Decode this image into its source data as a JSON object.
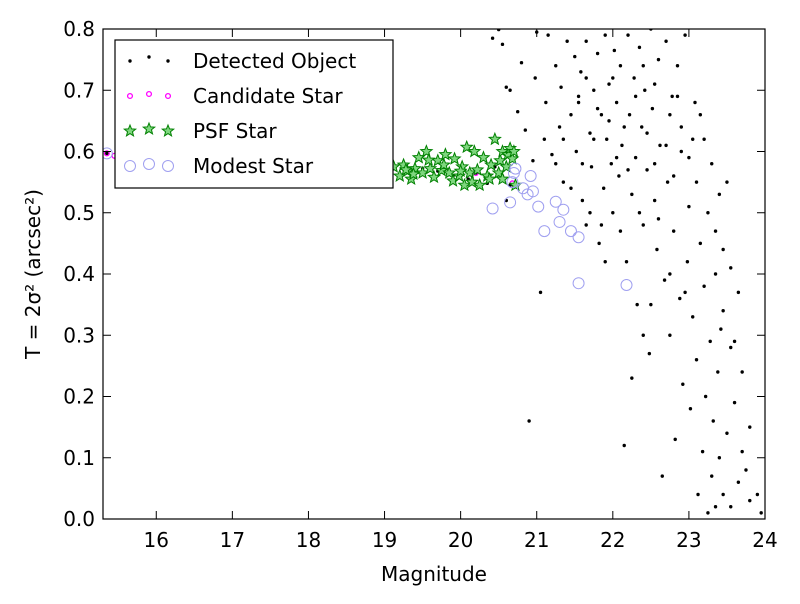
{
  "chart_data": {
    "type": "scatter",
    "xlabel": "Magnitude",
    "ylabel": "T = 2σ² (arcsec²)",
    "xlim": [
      15.3,
      24.0
    ],
    "ylim": [
      0.0,
      0.8
    ],
    "xticks": [
      "16",
      "17",
      "18",
      "19",
      "20",
      "21",
      "22",
      "23",
      "24"
    ],
    "yticks": [
      "0.0",
      "0.1",
      "0.2",
      "0.3",
      "0.4",
      "0.5",
      "0.6",
      "0.7",
      "0.8"
    ],
    "legend_position": "top-left",
    "grid": false,
    "series": [
      {
        "name": "Detected Object",
        "marker": "dot",
        "color": "#000000",
        "points": [
          [
            15.35,
            0.597
          ],
          [
            15.5,
            0.595
          ],
          [
            15.8,
            0.596
          ],
          [
            16.2,
            0.594
          ],
          [
            16.7,
            0.59
          ],
          [
            17.3,
            0.586
          ],
          [
            17.8,
            0.583
          ],
          [
            18.4,
            0.578
          ],
          [
            18.9,
            0.574
          ],
          [
            19.1,
            0.57
          ],
          [
            19.3,
            0.566
          ],
          [
            19.5,
            0.572
          ],
          [
            19.7,
            0.568
          ],
          [
            19.9,
            0.56
          ],
          [
            20.1,
            0.555
          ],
          [
            20.2,
            0.565
          ],
          [
            20.35,
            0.548
          ],
          [
            20.45,
            0.575
          ],
          [
            20.55,
            0.56
          ],
          [
            20.65,
            0.545
          ],
          [
            20.6,
            0.52
          ],
          [
            20.75,
            0.545
          ],
          [
            20.42,
            0.785
          ],
          [
            20.5,
            0.799
          ],
          [
            20.55,
            0.775
          ],
          [
            20.6,
            0.705
          ],
          [
            20.65,
            0.7
          ],
          [
            20.75,
            0.665
          ],
          [
            20.8,
            0.745
          ],
          [
            20.85,
            0.635
          ],
          [
            20.9,
            0.16
          ],
          [
            20.95,
            0.585
          ],
          [
            20.98,
            0.72
          ],
          [
            21.0,
            0.795
          ],
          [
            21.05,
            0.37
          ],
          [
            21.1,
            0.62
          ],
          [
            21.12,
            0.68
          ],
          [
            21.15,
            0.79
          ],
          [
            21.2,
            0.595
          ],
          [
            21.25,
            0.74
          ],
          [
            21.3,
            0.64
          ],
          [
            21.32,
            0.705
          ],
          [
            21.35,
            0.55
          ],
          [
            21.4,
            0.78
          ],
          [
            21.45,
            0.66
          ],
          [
            21.5,
            0.755
          ],
          [
            21.52,
            0.6
          ],
          [
            21.55,
            0.69
          ],
          [
            21.58,
            0.73
          ],
          [
            21.6,
            0.52
          ],
          [
            21.65,
            0.78
          ],
          [
            21.7,
            0.63
          ],
          [
            21.72,
            0.575
          ],
          [
            21.75,
            0.7
          ],
          [
            21.8,
            0.76
          ],
          [
            21.82,
            0.45
          ],
          [
            21.85,
            0.66
          ],
          [
            21.88,
            0.54
          ],
          [
            21.9,
            0.79
          ],
          [
            21.92,
            0.62
          ],
          [
            21.95,
            0.71
          ],
          [
            21.98,
            0.58
          ],
          [
            22.0,
            0.5
          ],
          [
            22.02,
            0.765
          ],
          [
            22.05,
            0.68
          ],
          [
            22.08,
            0.56
          ],
          [
            22.1,
            0.74
          ],
          [
            22.12,
            0.61
          ],
          [
            22.15,
            0.12
          ],
          [
            22.18,
            0.42
          ],
          [
            22.2,
            0.79
          ],
          [
            22.22,
            0.66
          ],
          [
            22.25,
            0.53
          ],
          [
            22.28,
            0.72
          ],
          [
            22.3,
            0.59
          ],
          [
            22.32,
            0.35
          ],
          [
            22.35,
            0.77
          ],
          [
            22.38,
            0.64
          ],
          [
            22.4,
            0.48
          ],
          [
            22.42,
            0.7
          ],
          [
            22.45,
            0.57
          ],
          [
            22.48,
            0.27
          ],
          [
            22.5,
            0.8
          ],
          [
            22.52,
            0.67
          ],
          [
            22.55,
            0.52
          ],
          [
            22.58,
            0.44
          ],
          [
            22.6,
            0.75
          ],
          [
            22.62,
            0.61
          ],
          [
            22.65,
            0.07
          ],
          [
            22.68,
            0.39
          ],
          [
            22.7,
            0.78
          ],
          [
            22.72,
            0.55
          ],
          [
            22.75,
            0.3
          ],
          [
            22.78,
            0.69
          ],
          [
            22.8,
            0.47
          ],
          [
            22.82,
            0.13
          ],
          [
            22.85,
            0.74
          ],
          [
            22.88,
            0.36
          ],
          [
            22.9,
            0.6
          ],
          [
            22.92,
            0.22
          ],
          [
            22.95,
            0.79
          ],
          [
            22.98,
            0.42
          ],
          [
            23.0,
            0.51
          ],
          [
            23.02,
            0.18
          ],
          [
            23.05,
            0.33
          ],
          [
            23.08,
            0.68
          ],
          [
            23.1,
            0.26
          ],
          [
            23.12,
            0.04
          ],
          [
            23.15,
            0.45
          ],
          [
            23.18,
            0.11
          ],
          [
            23.2,
            0.38
          ],
          [
            23.22,
            0.2
          ],
          [
            23.25,
            0.01
          ],
          [
            23.28,
            0.29
          ],
          [
            23.3,
            0.07
          ],
          [
            23.32,
            0.16
          ],
          [
            23.35,
            0.02
          ],
          [
            23.38,
            0.24
          ],
          [
            23.4,
            0.1
          ],
          [
            23.42,
            0.31
          ],
          [
            23.45,
            0.04
          ],
          [
            23.5,
            0.14
          ],
          [
            23.55,
            0.02
          ],
          [
            23.6,
            0.19
          ],
          [
            23.65,
            0.06
          ],
          [
            23.7,
            0.11
          ],
          [
            23.75,
            0.08
          ],
          [
            23.8,
            0.03
          ],
          [
            23.9,
            0.04
          ],
          [
            23.95,
            0.01
          ],
          [
            21.6,
            0.58
          ],
          [
            21.7,
            0.5
          ],
          [
            21.75,
            0.62
          ],
          [
            21.85,
            0.48
          ],
          [
            21.95,
            0.65
          ],
          [
            22.05,
            0.59
          ],
          [
            22.1,
            0.47
          ],
          [
            22.2,
            0.57
          ],
          [
            22.3,
            0.69
          ],
          [
            22.35,
            0.5
          ],
          [
            22.45,
            0.63
          ],
          [
            22.55,
            0.58
          ],
          [
            22.6,
            0.49
          ],
          [
            22.7,
            0.61
          ],
          [
            22.8,
            0.56
          ],
          [
            22.9,
            0.64
          ],
          [
            23.0,
            0.59
          ],
          [
            23.1,
            0.55
          ],
          [
            23.2,
            0.62
          ],
          [
            23.3,
            0.58
          ],
          [
            23.4,
            0.53
          ],
          [
            23.5,
            0.55
          ],
          [
            23.6,
            0.29
          ],
          [
            23.7,
            0.24
          ],
          [
            23.8,
            0.15
          ],
          [
            23.35,
            0.4
          ],
          [
            23.45,
            0.34
          ],
          [
            23.55,
            0.28
          ],
          [
            22.95,
            0.37
          ],
          [
            22.75,
            0.4
          ],
          [
            22.5,
            0.35
          ],
          [
            22.25,
            0.23
          ],
          [
            22.4,
            0.3
          ],
          [
            21.9,
            0.42
          ],
          [
            21.65,
            0.48
          ],
          [
            21.45,
            0.54
          ],
          [
            21.35,
            0.62
          ],
          [
            21.25,
            0.58
          ],
          [
            21.55,
            0.68
          ],
          [
            21.65,
            0.72
          ],
          [
            21.8,
            0.67
          ],
          [
            22.0,
            0.72
          ],
          [
            22.15,
            0.64
          ],
          [
            22.4,
            0.74
          ],
          [
            22.55,
            0.71
          ],
          [
            22.75,
            0.66
          ],
          [
            22.85,
            0.69
          ],
          [
            23.05,
            0.62
          ],
          [
            23.15,
            0.66
          ],
          [
            23.25,
            0.5
          ],
          [
            23.35,
            0.47
          ],
          [
            23.45,
            0.44
          ],
          [
            23.55,
            0.41
          ],
          [
            23.65,
            0.37
          ]
        ]
      },
      {
        "name": "Candidate Star",
        "marker": "circle-small",
        "color": "#ff00ff",
        "points": [
          [
            15.35,
            0.597
          ],
          [
            15.45,
            0.593
          ],
          [
            20.2,
            0.565
          ],
          [
            20.68,
            0.548
          ]
        ]
      },
      {
        "name": "PSF Star",
        "marker": "star",
        "color": "#008000",
        "points": [
          [
            19.12,
            0.575
          ],
          [
            19.2,
            0.56
          ],
          [
            19.25,
            0.578
          ],
          [
            19.3,
            0.568
          ],
          [
            19.35,
            0.555
          ],
          [
            19.4,
            0.572
          ],
          [
            19.45,
            0.59
          ],
          [
            19.5,
            0.565
          ],
          [
            19.55,
            0.6
          ],
          [
            19.6,
            0.572
          ],
          [
            19.65,
            0.558
          ],
          [
            19.7,
            0.585
          ],
          [
            19.75,
            0.569
          ],
          [
            19.8,
            0.595
          ],
          [
            19.85,
            0.565
          ],
          [
            19.9,
            0.552
          ],
          [
            19.92,
            0.588
          ],
          [
            19.98,
            0.56
          ],
          [
            20.02,
            0.575
          ],
          [
            20.05,
            0.545
          ],
          [
            20.08,
            0.607
          ],
          [
            20.12,
            0.565
          ],
          [
            20.15,
            0.55
          ],
          [
            20.18,
            0.6
          ],
          [
            20.22,
            0.57
          ],
          [
            20.25,
            0.545
          ],
          [
            20.3,
            0.59
          ],
          [
            20.35,
            0.56
          ],
          [
            20.4,
            0.578
          ],
          [
            20.45,
            0.62
          ],
          [
            20.5,
            0.565
          ],
          [
            20.52,
            0.585
          ],
          [
            20.55,
            0.6
          ],
          [
            20.6,
            0.575
          ],
          [
            20.62,
            0.595
          ],
          [
            20.65,
            0.605
          ],
          [
            20.68,
            0.588
          ],
          [
            20.7,
            0.6
          ],
          [
            20.72,
            0.545
          ],
          [
            20.55,
            0.555
          ],
          [
            20.38,
            0.555
          ],
          [
            20.0,
            0.568
          ],
          [
            19.78,
            0.578
          ],
          [
            19.58,
            0.586
          ],
          [
            19.38,
            0.563
          ],
          [
            19.28,
            0.57
          ]
        ]
      },
      {
        "name": "Modest Star",
        "marker": "circle-open",
        "color": "#a0a0f0",
        "points": [
          [
            15.35,
            0.597
          ],
          [
            20.42,
            0.507
          ],
          [
            20.65,
            0.517
          ],
          [
            20.68,
            0.55
          ],
          [
            20.7,
            0.565
          ],
          [
            20.82,
            0.54
          ],
          [
            20.88,
            0.53
          ],
          [
            20.92,
            0.56
          ],
          [
            20.95,
            0.535
          ],
          [
            21.02,
            0.51
          ],
          [
            21.1,
            0.47
          ],
          [
            21.25,
            0.518
          ],
          [
            21.3,
            0.485
          ],
          [
            21.35,
            0.505
          ],
          [
            21.45,
            0.47
          ],
          [
            21.55,
            0.46
          ],
          [
            21.55,
            0.385
          ],
          [
            22.18,
            0.382
          ],
          [
            20.72,
            0.572
          ]
        ]
      }
    ]
  }
}
